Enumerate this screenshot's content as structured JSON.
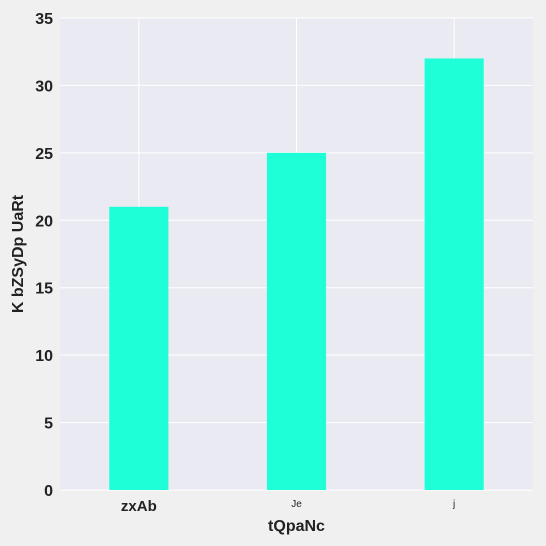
{
  "colors": {
    "figure_background": "#f0f0f0",
    "plot_background": "#eaeaf2",
    "grid": "#ffffff",
    "bar": "#1effd8",
    "text": "#222222"
  },
  "chart_data": {
    "type": "bar",
    "title": "",
    "xlabel": "tQpaNc",
    "ylabel": "K bZSyDp UaRt",
    "categories": [
      "zxAb",
      "Je",
      "j"
    ],
    "category_label_styles": [
      "large-bold",
      "small",
      "small"
    ],
    "values": [
      21,
      25,
      32
    ],
    "ylim": [
      0,
      35
    ],
    "yticks": [
      0,
      5,
      10,
      15,
      20,
      25,
      30,
      35
    ],
    "grid": true,
    "legend": null
  }
}
